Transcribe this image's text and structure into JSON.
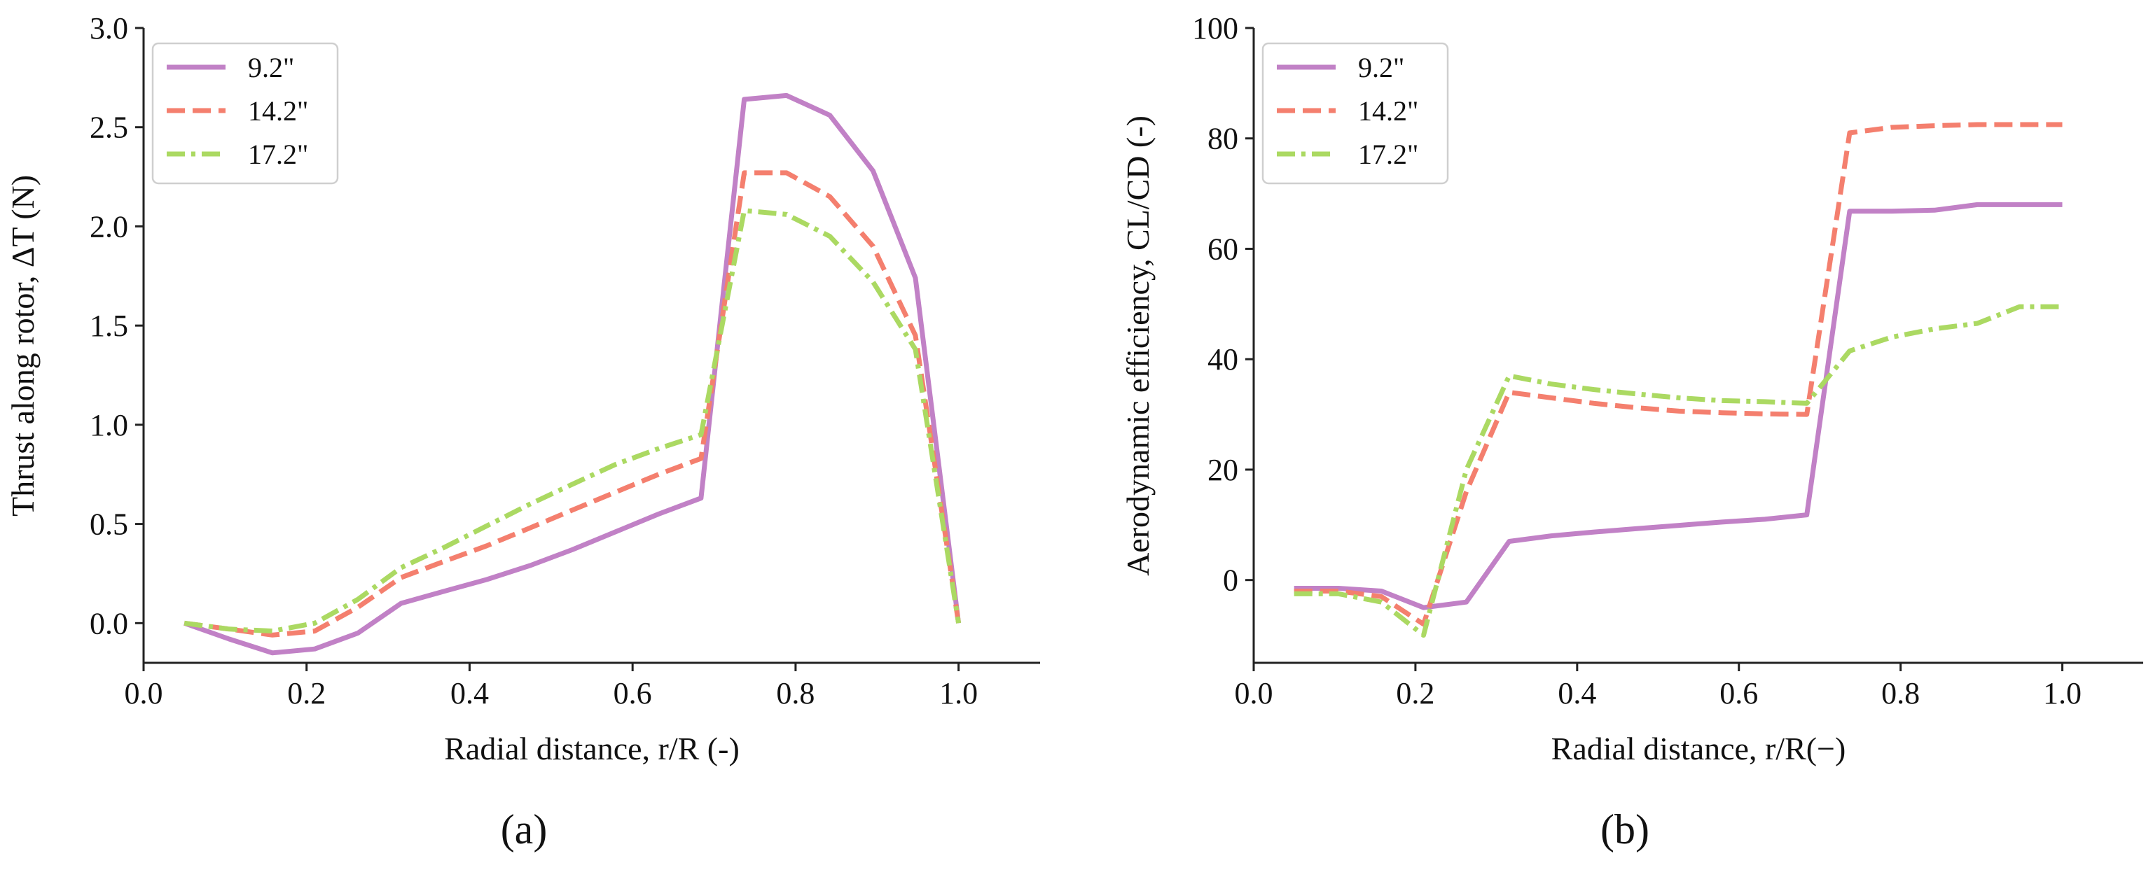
{
  "chart_data": [
    {
      "type": "line",
      "panel_label": "(a)",
      "title": "",
      "xlabel": "Radial distance, r/R (-)",
      "ylabel": "Thrust along rotor, ΔT (N)",
      "xlim": [
        0.0,
        1.1
      ],
      "ylim": [
        -0.2,
        3.0
      ],
      "xticks": [
        0.0,
        0.2,
        0.4,
        0.6,
        0.8,
        1.0
      ],
      "yticks": [
        0.0,
        0.5,
        1.0,
        1.5,
        2.0,
        2.5,
        3.0
      ],
      "xtick_labels": [
        "0.0",
        "0.2",
        "0.4",
        "0.6",
        "0.8",
        "1.0"
      ],
      "ytick_labels": [
        "0.0",
        "0.5",
        "1.0",
        "1.5",
        "2.0",
        "2.5",
        "3.0"
      ],
      "grid": false,
      "legend_position": "top-left",
      "series": [
        {
          "name": "9.2\"",
          "color": "#c181c6",
          "style": "solid",
          "x": [
            0.05,
            0.105,
            0.158,
            0.21,
            0.263,
            0.316,
            0.368,
            0.421,
            0.474,
            0.526,
            0.579,
            0.632,
            0.684,
            0.737,
            0.789,
            0.842,
            0.895,
            0.947,
            1.0
          ],
          "y": [
            0.0,
            -0.08,
            -0.15,
            -0.13,
            -0.05,
            0.1,
            0.16,
            0.22,
            0.29,
            0.37,
            0.46,
            0.55,
            0.63,
            2.64,
            2.66,
            2.56,
            2.28,
            1.74,
            0.0
          ]
        },
        {
          "name": "14.2\"",
          "color": "#f47f6e",
          "style": "dashed",
          "x": [
            0.05,
            0.105,
            0.158,
            0.21,
            0.263,
            0.316,
            0.368,
            0.421,
            0.474,
            0.526,
            0.579,
            0.632,
            0.684,
            0.737,
            0.789,
            0.842,
            0.895,
            0.947,
            1.0
          ],
          "y": [
            0.0,
            -0.03,
            -0.06,
            -0.04,
            0.08,
            0.23,
            0.31,
            0.39,
            0.48,
            0.57,
            0.66,
            0.75,
            0.83,
            2.27,
            2.27,
            2.15,
            1.9,
            1.45,
            0.0
          ]
        },
        {
          "name": "17.2\"",
          "color": "#abd962",
          "style": "dashdot",
          "x": [
            0.05,
            0.105,
            0.158,
            0.21,
            0.263,
            0.316,
            0.368,
            0.421,
            0.474,
            0.526,
            0.579,
            0.632,
            0.684,
            0.737,
            0.789,
            0.842,
            0.895,
            0.947,
            1.0
          ],
          "y": [
            0.0,
            -0.03,
            -0.04,
            0.0,
            0.12,
            0.28,
            0.38,
            0.49,
            0.6,
            0.7,
            0.8,
            0.88,
            0.95,
            2.08,
            2.06,
            1.95,
            1.72,
            1.38,
            0.0
          ]
        }
      ]
    },
    {
      "type": "line",
      "panel_label": "(b)",
      "title": "",
      "xlabel": "Radial distance, r/R(−)",
      "ylabel": "Aerodynamic efficiency, CL/CD (-)",
      "xlim": [
        0.0,
        1.1
      ],
      "ylim": [
        -15,
        100
      ],
      "xticks": [
        0.0,
        0.2,
        0.4,
        0.6,
        0.8,
        1.0
      ],
      "yticks": [
        0,
        20,
        40,
        60,
        80,
        100
      ],
      "xtick_labels": [
        "0.0",
        "0.2",
        "0.4",
        "0.6",
        "0.8",
        "1.0"
      ],
      "ytick_labels": [
        "0",
        "20",
        "40",
        "60",
        "80",
        "100"
      ],
      "grid": false,
      "legend_position": "top-left",
      "series": [
        {
          "name": "9.2\"",
          "color": "#c181c6",
          "style": "solid",
          "x": [
            0.05,
            0.105,
            0.158,
            0.21,
            0.263,
            0.316,
            0.368,
            0.421,
            0.474,
            0.526,
            0.579,
            0.632,
            0.684,
            0.737,
            0.789,
            0.842,
            0.895,
            0.947,
            1.0
          ],
          "y": [
            -1.5,
            -1.5,
            -2.0,
            -5.0,
            -4.0,
            7.0,
            8.0,
            8.7,
            9.3,
            9.9,
            10.5,
            11.0,
            11.8,
            66.8,
            66.8,
            67.0,
            68.0,
            68.0,
            68.0
          ]
        },
        {
          "name": "14.2\"",
          "color": "#f47f6e",
          "style": "dashed",
          "x": [
            0.05,
            0.105,
            0.158,
            0.21,
            0.263,
            0.316,
            0.368,
            0.421,
            0.474,
            0.526,
            0.579,
            0.632,
            0.684,
            0.737,
            0.789,
            0.842,
            0.895,
            0.947,
            1.0
          ],
          "y": [
            -2.0,
            -2.0,
            -3.0,
            -8.0,
            16.0,
            34.0,
            33.0,
            32.0,
            31.2,
            30.6,
            30.3,
            30.1,
            30.0,
            81.0,
            82.0,
            82.3,
            82.5,
            82.5,
            82.5
          ]
        },
        {
          "name": "17.2\"",
          "color": "#abd962",
          "style": "dashdot",
          "x": [
            0.05,
            0.105,
            0.158,
            0.21,
            0.263,
            0.316,
            0.368,
            0.421,
            0.474,
            0.526,
            0.579,
            0.632,
            0.684,
            0.737,
            0.789,
            0.842,
            0.895,
            0.947,
            1.0
          ],
          "y": [
            -2.5,
            -2.5,
            -4.0,
            -10.0,
            20.0,
            37.0,
            35.5,
            34.5,
            33.7,
            33.0,
            32.5,
            32.3,
            32.0,
            41.5,
            44.0,
            45.5,
            46.5,
            49.5,
            49.5
          ]
        }
      ]
    }
  ]
}
